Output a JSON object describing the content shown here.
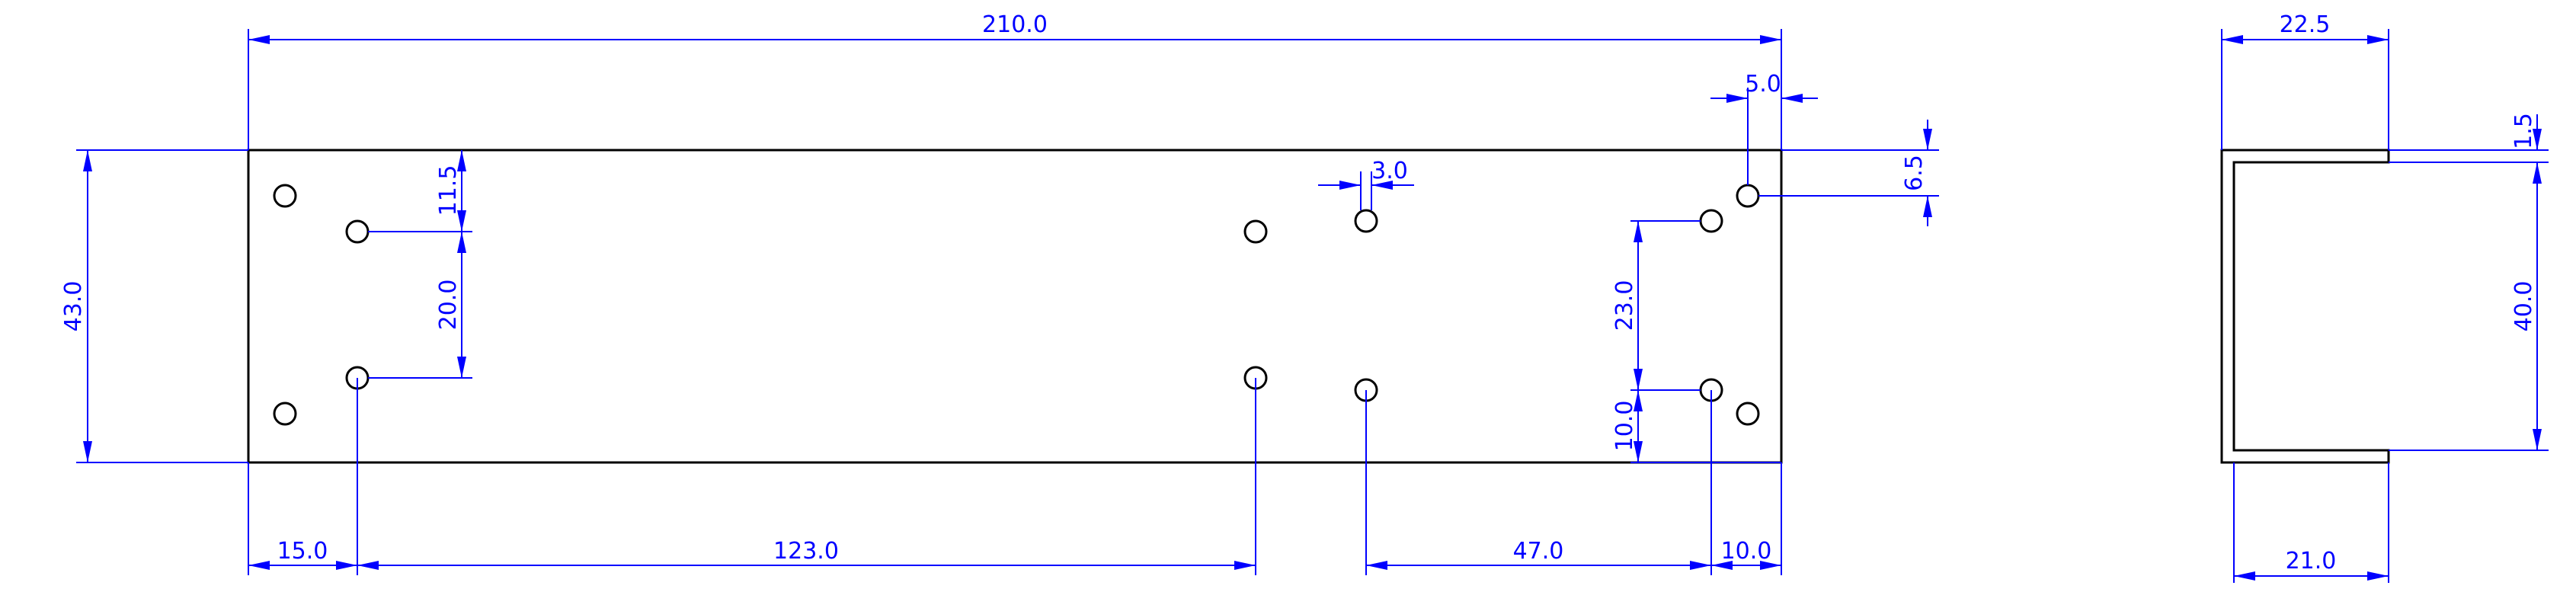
{
  "drawing": {
    "colors": {
      "outline": "#000000",
      "dimension": "#0000ff",
      "background": "#ffffff"
    },
    "front_view": {
      "dimensions": {
        "overall_width": "210.0",
        "overall_height": "43.0",
        "hole_col1_x": "15.0",
        "hole_row1_from_top": "11.5",
        "hole_row_spacing": "20.0",
        "hole_col2_span": "123.0",
        "small_slot_width": "3.0",
        "right_hole_offset_x": "5.0",
        "right_hole_offset_y": "6.5",
        "right_pair_spacing": "23.0",
        "right_pair_from_bottom": "10.0",
        "lower_span": "47.0",
        "right_edge_offset": "10.0"
      }
    },
    "side_view": {
      "dimensions": {
        "outer_width": "22.5",
        "inner_width": "21.0",
        "wall_thickness": "1.5",
        "inner_height": "40.0"
      }
    }
  }
}
